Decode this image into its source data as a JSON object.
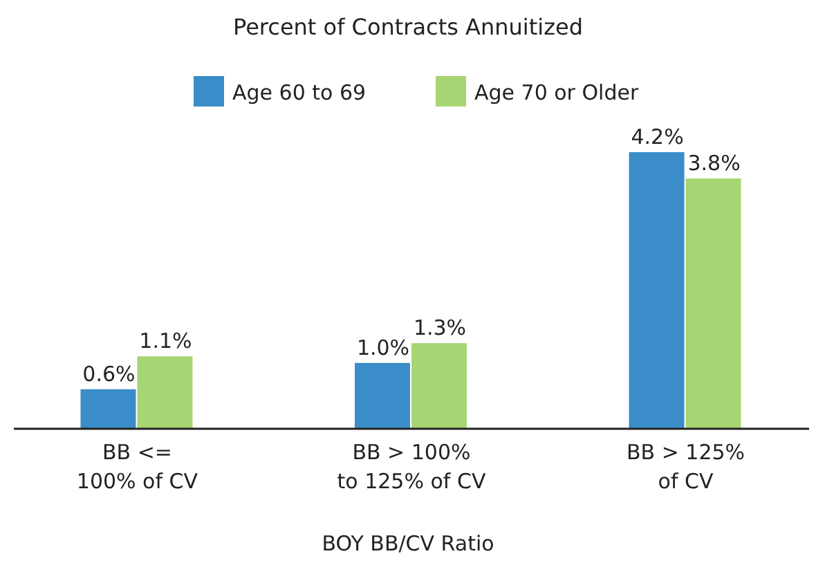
{
  "chart_data": {
    "type": "bar",
    "title": "Percent of Contracts Annuitized",
    "xlabel": "BOY BB/CV Ratio",
    "categories": [
      "BB <=\n100% of CV",
      "BB > 100%\nto 125% of CV",
      "BB > 125%\nof CV"
    ],
    "series": [
      {
        "name": "Age 60 to 69",
        "color": "#3a8dc9",
        "values": [
          0.6,
          1.0,
          4.2
        ],
        "value_labels": [
          "0.6%",
          "1.0%",
          "4.2%"
        ]
      },
      {
        "name": "Age 70 or Older",
        "color": "#a7d574",
        "values": [
          1.1,
          1.3,
          3.8
        ],
        "value_labels": [
          "1.1%",
          "1.3%",
          "3.8%"
        ]
      }
    ],
    "legend": "top",
    "data_labels": true
  }
}
